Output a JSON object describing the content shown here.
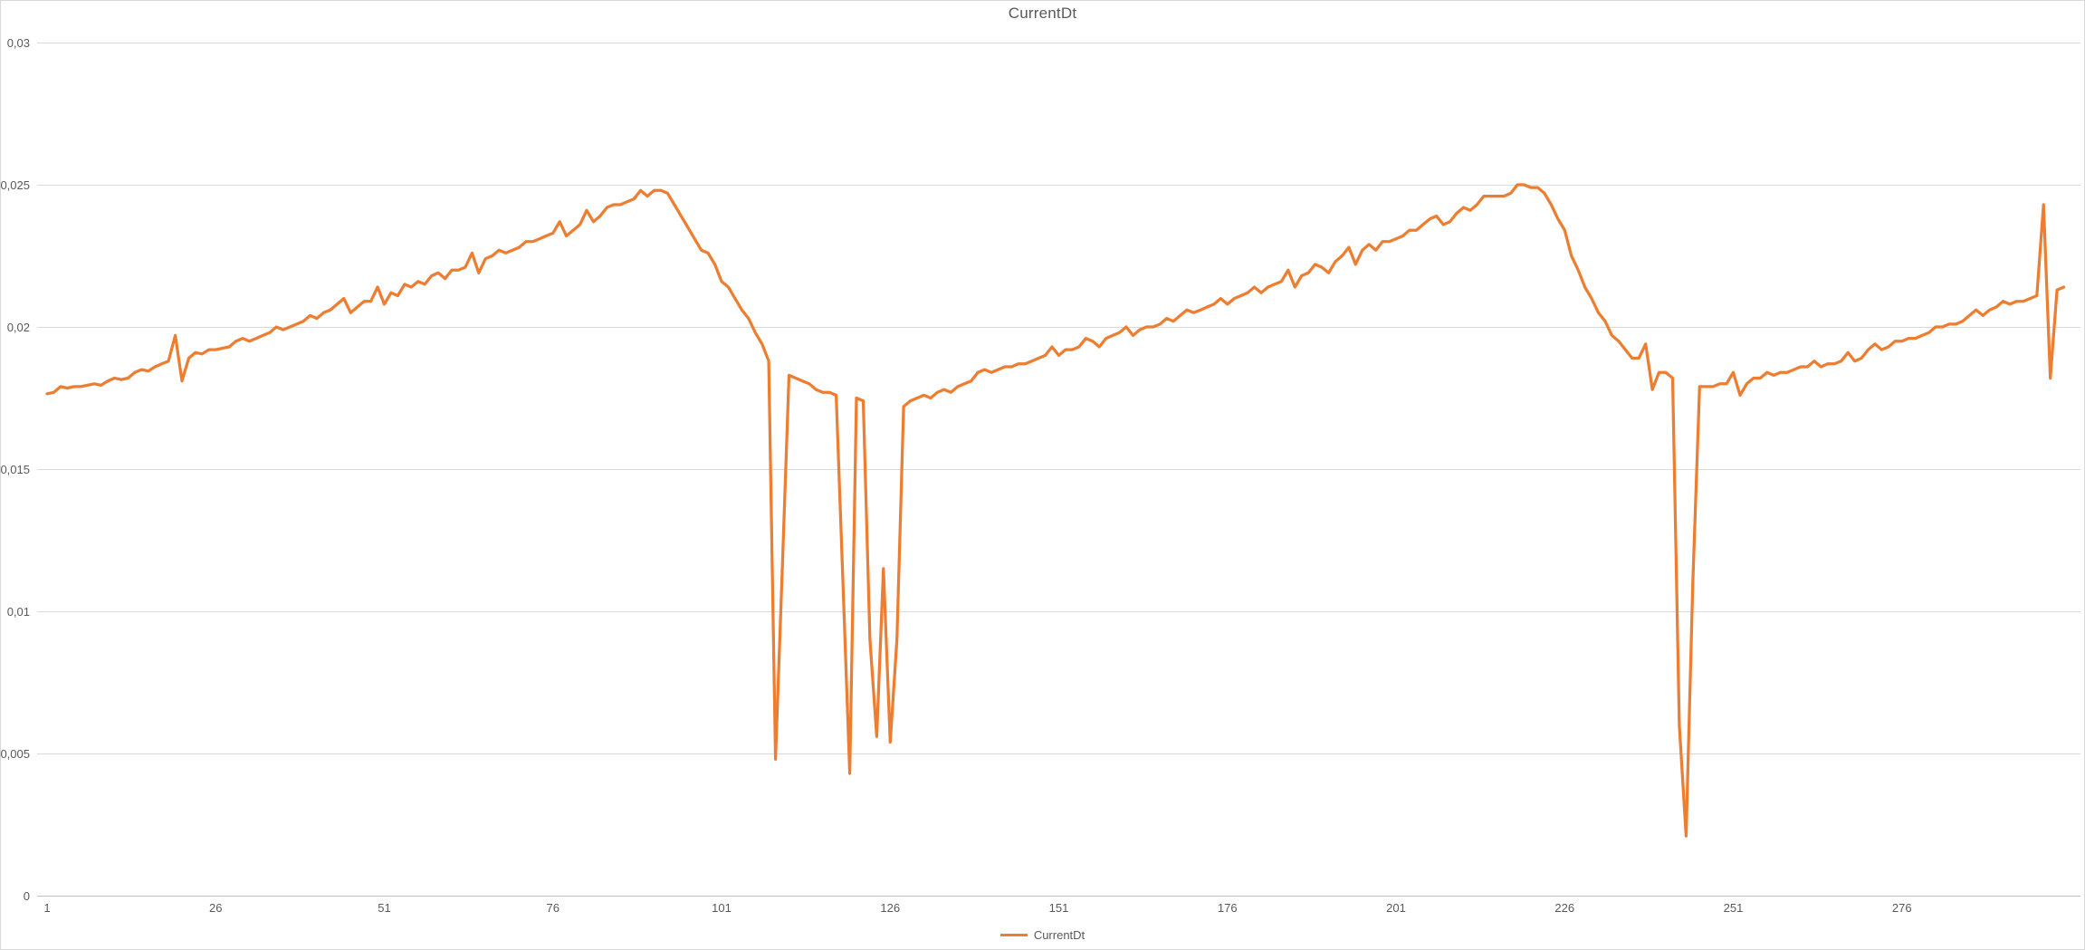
{
  "title": "CurrentDt",
  "legend": {
    "label": "CurrentDt"
  },
  "colors": {
    "series": "#ED7D31",
    "gridline": "#D9D9D9",
    "axis_line": "#BFBFBF",
    "axis_text": "#595959",
    "title_text": "#595959",
    "background": "#FFFFFF",
    "chart_border": "#D9D9D9"
  },
  "y_axis": {
    "labels": [
      "0,03",
      "0,025",
      "0,02",
      "0,015",
      "0,01",
      "0,005",
      "0"
    ],
    "min": 0,
    "max": 0.03,
    "step": 0.005,
    "decimal_separator": ","
  },
  "x_axis": {
    "tick_labels": [
      "1",
      "26",
      "51",
      "76",
      "101",
      "126",
      "151",
      "176",
      "201",
      "226",
      "251",
      "276"
    ],
    "tick_interval": 25
  },
  "chart_data": {
    "type": "line",
    "title": "CurrentDt",
    "xlabel": "",
    "ylabel": "",
    "x_start": 1,
    "ylim": [
      0,
      0.03
    ],
    "grid": true,
    "legend_position": "bottom",
    "series": [
      {
        "name": "CurrentDt",
        "color": "#ED7D31",
        "values": [
          0.01765,
          0.0177,
          0.0179,
          0.01785,
          0.0179,
          0.0179,
          0.01795,
          0.018,
          0.01795,
          0.0181,
          0.0182,
          0.01815,
          0.0182,
          0.0184,
          0.0185,
          0.01845,
          0.0186,
          0.0187,
          0.0188,
          0.0197,
          0.0181,
          0.0189,
          0.0191,
          0.01905,
          0.0192,
          0.0192,
          0.01925,
          0.0193,
          0.0195,
          0.0196,
          0.0195,
          0.0196,
          0.0197,
          0.0198,
          0.02,
          0.0199,
          0.02,
          0.0201,
          0.0202,
          0.0204,
          0.0203,
          0.0205,
          0.0206,
          0.0208,
          0.021,
          0.0205,
          0.0207,
          0.0209,
          0.0209,
          0.0214,
          0.0208,
          0.0212,
          0.0211,
          0.0215,
          0.0214,
          0.0216,
          0.0215,
          0.0218,
          0.0219,
          0.0217,
          0.022,
          0.022,
          0.0221,
          0.0226,
          0.0219,
          0.0224,
          0.0225,
          0.0227,
          0.0226,
          0.0227,
          0.0228,
          0.023,
          0.023,
          0.0231,
          0.0232,
          0.0233,
          0.0237,
          0.0232,
          0.0234,
          0.0236,
          0.0241,
          0.0237,
          0.0239,
          0.0242,
          0.0243,
          0.0243,
          0.0244,
          0.0245,
          0.0248,
          0.0246,
          0.0248,
          0.0248,
          0.0247,
          0.0243,
          0.0239,
          0.0235,
          0.0231,
          0.0227,
          0.0226,
          0.0222,
          0.0216,
          0.0214,
          0.021,
          0.0206,
          0.0203,
          0.0198,
          0.0194,
          0.0188,
          0.0048,
          0.0115,
          0.0183,
          0.0182,
          0.0181,
          0.018,
          0.0178,
          0.0177,
          0.0177,
          0.0176,
          0.011,
          0.0043,
          0.0175,
          0.0174,
          0.009,
          0.0056,
          0.0115,
          0.0054,
          0.009,
          0.0172,
          0.0174,
          0.0175,
          0.0176,
          0.0175,
          0.0177,
          0.0178,
          0.0177,
          0.0179,
          0.018,
          0.0181,
          0.0184,
          0.0185,
          0.0184,
          0.0185,
          0.0186,
          0.0186,
          0.0187,
          0.0187,
          0.0188,
          0.0189,
          0.019,
          0.0193,
          0.019,
          0.0192,
          0.0192,
          0.0193,
          0.0196,
          0.0195,
          0.0193,
          0.0196,
          0.0197,
          0.0198,
          0.02,
          0.0197,
          0.0199,
          0.02,
          0.02,
          0.0201,
          0.0203,
          0.0202,
          0.0204,
          0.0206,
          0.0205,
          0.0206,
          0.0207,
          0.0208,
          0.021,
          0.0208,
          0.021,
          0.0211,
          0.0212,
          0.0214,
          0.0212,
          0.0214,
          0.0215,
          0.0216,
          0.022,
          0.0214,
          0.0218,
          0.0219,
          0.0222,
          0.0221,
          0.0219,
          0.0223,
          0.0225,
          0.0228,
          0.0222,
          0.0227,
          0.0229,
          0.0227,
          0.023,
          0.023,
          0.0231,
          0.0232,
          0.0234,
          0.0234,
          0.0236,
          0.0238,
          0.0239,
          0.0236,
          0.0237,
          0.024,
          0.0242,
          0.0241,
          0.0243,
          0.0246,
          0.0246,
          0.0246,
          0.0246,
          0.0247,
          0.025,
          0.025,
          0.0249,
          0.0249,
          0.0247,
          0.0243,
          0.0238,
          0.0234,
          0.0225,
          0.022,
          0.0214,
          0.021,
          0.0205,
          0.0202,
          0.0197,
          0.0195,
          0.0192,
          0.0189,
          0.0189,
          0.0194,
          0.0178,
          0.0184,
          0.0184,
          0.0182,
          0.006,
          0.0021,
          0.011,
          0.0179,
          0.0179,
          0.0179,
          0.018,
          0.018,
          0.0184,
          0.0176,
          0.018,
          0.0182,
          0.0182,
          0.0184,
          0.0183,
          0.0184,
          0.0184,
          0.0185,
          0.0186,
          0.0186,
          0.0188,
          0.0186,
          0.0187,
          0.0187,
          0.0188,
          0.0191,
          0.0188,
          0.0189,
          0.0192,
          0.0194,
          0.0192,
          0.0193,
          0.0195,
          0.0195,
          0.0196,
          0.0196,
          0.0197,
          0.0198,
          0.02,
          0.02,
          0.0201,
          0.0201,
          0.0202,
          0.0204,
          0.0206,
          0.0204,
          0.0206,
          0.0207,
          0.0209,
          0.0208,
          0.0209,
          0.0209,
          0.021,
          0.0211,
          0.0243,
          0.0182,
          0.0213,
          0.0214
        ]
      }
    ]
  }
}
